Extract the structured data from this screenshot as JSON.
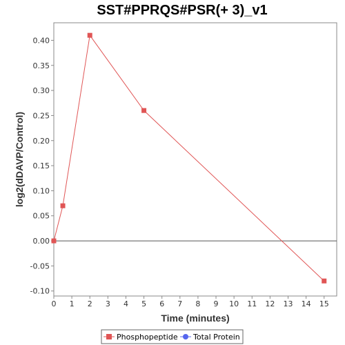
{
  "chart_data": {
    "type": "line",
    "title": "SST#PPRQS#PSR(+ 3)_v1",
    "xlabel": "Time (minutes)",
    "ylabel": "log2(dDAVP/Control)",
    "xlim": [
      0,
      15.7
    ],
    "ylim": [
      -0.11,
      0.435
    ],
    "x_ticks": [
      0,
      1,
      2,
      3,
      4,
      5,
      6,
      7,
      8,
      9,
      10,
      11,
      12,
      13,
      14,
      15
    ],
    "y_ticks": [
      -0.1,
      -0.05,
      0.0,
      0.05,
      0.1,
      0.15,
      0.2,
      0.25,
      0.3,
      0.35,
      0.4
    ],
    "y_tick_labels": [
      "-0.10",
      "-0.05",
      "0.00",
      "0.05",
      "0.10",
      "0.15",
      "0.20",
      "0.25",
      "0.30",
      "0.35",
      "0.40"
    ],
    "zero_line": true,
    "grid": false,
    "legend_position": "bottom",
    "series": [
      {
        "name": "Phosphopeptide",
        "color": "#e05555",
        "marker": "square",
        "points": [
          {
            "x": 0,
            "y": 0.0
          },
          {
            "x": 0.5,
            "y": 0.07
          },
          {
            "x": 2,
            "y": 0.41
          },
          {
            "x": 5,
            "y": 0.26
          },
          {
            "x": 15,
            "y": -0.08
          }
        ]
      },
      {
        "name": "Total Protein",
        "color": "#5566ee",
        "marker": "circle",
        "points": []
      }
    ]
  }
}
